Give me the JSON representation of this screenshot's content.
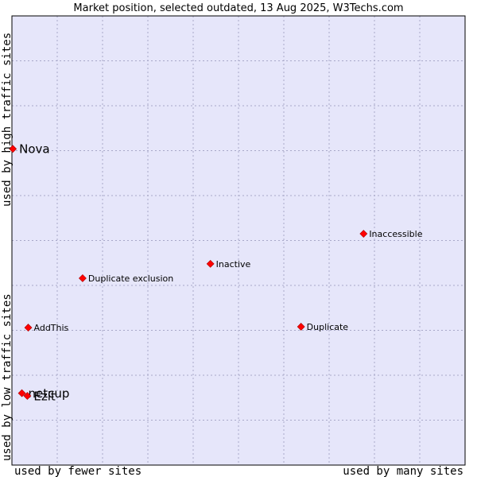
{
  "chart_data": {
    "type": "scatter",
    "title": "Market position, selected outdated, 13 Aug 2025, W3Techs.com",
    "xlabel_left": "used by fewer sites",
    "xlabel_right": "used by many sites",
    "ylabel_top": "used by high traffic sites",
    "ylabel_bottom": "used by low traffic sites",
    "xlim": [
      0,
      100
    ],
    "ylim": [
      0,
      100
    ],
    "grid": true,
    "colors": {
      "plot_bg": "#e6e6fa",
      "grid": "#a8a8c8",
      "marker": "#ff0000",
      "marker_edge": "#aa0000",
      "border": "#000000"
    },
    "points": [
      {
        "label": "Nova",
        "x": 0.2,
        "y": 70.4,
        "size": "large"
      },
      {
        "label": "Inaccessible",
        "x": 77.6,
        "y": 51.5,
        "size": "small"
      },
      {
        "label": "Inactive",
        "x": 43.8,
        "y": 44.8,
        "size": "small"
      },
      {
        "label": "Duplicate exclusion",
        "x": 15.6,
        "y": 41.6,
        "size": "small"
      },
      {
        "label": "AddThis",
        "x": 3.6,
        "y": 30.6,
        "size": "small"
      },
      {
        "label": "Duplicate",
        "x": 63.8,
        "y": 30.8,
        "size": "small"
      },
      {
        "label": "netcup",
        "x": 2.2,
        "y": 16.0,
        "size": "large"
      },
      {
        "label": "Ezit",
        "x": 3.4,
        "y": 15.4,
        "size": "large"
      }
    ]
  }
}
